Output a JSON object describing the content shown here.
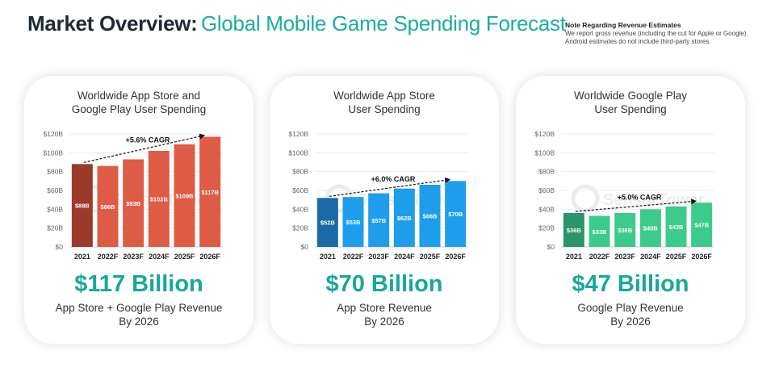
{
  "header": {
    "title_bold": "Market Overview:",
    "title_light": "Global Mobile Game Spending Forecast"
  },
  "note": {
    "title": "Note Regarding Revenue Estimates",
    "line1": "We report gross revenue (including the cut for Apple or Google).",
    "line2": "Android estimates do not include third-party stores."
  },
  "watermark": "SensorTower",
  "cards": [
    {
      "title_line1": "Worldwide App Store and",
      "title_line2": "Google Play User Spending",
      "big_value": "$117 Billion",
      "subtitle_line1": "App Store + Google Play Revenue",
      "subtitle_line2": "By 2026",
      "bar_color": "#de5b45",
      "first_bar_color": "#9b3a2b"
    },
    {
      "title_line1": "Worldwide App Store",
      "title_line2": "User Spending",
      "big_value": "$70 Billion",
      "subtitle_line1": "App Store Revenue",
      "subtitle_line2": "By 2026",
      "bar_color": "#1e9ded",
      "first_bar_color": "#1a6aa8"
    },
    {
      "title_line1": "Worldwide Google Play",
      "title_line2": "User Spending",
      "big_value": "$47 Billion",
      "subtitle_line1": "Google Play Revenue",
      "subtitle_line2": "By 2026",
      "bar_color": "#3ccb8b",
      "first_bar_color": "#2a9668"
    }
  ],
  "chart_data": [
    {
      "type": "bar",
      "title": "Worldwide App Store and Google Play User Spending",
      "categories": [
        "2021",
        "2022F",
        "2023F",
        "2024F",
        "2025F",
        "2026F"
      ],
      "values": [
        88,
        86,
        93,
        102,
        109,
        117
      ],
      "data_labels": [
        "$88B",
        "$86B",
        "$93B",
        "$102B",
        "$109B",
        "$117B"
      ],
      "yticks": [
        "$0",
        "$20B",
        "$40B",
        "$60B",
        "$80B",
        "$100B",
        "$120B"
      ],
      "ylim": [
        0,
        120
      ],
      "annotation": "+5.6% CAGR",
      "grid": true
    },
    {
      "type": "bar",
      "title": "Worldwide App Store User Spending",
      "categories": [
        "2021",
        "2022F",
        "2023F",
        "2024F",
        "2025F",
        "2026F"
      ],
      "values": [
        52,
        53,
        57,
        62,
        66,
        70
      ],
      "data_labels": [
        "$52B",
        "$53B",
        "$57B",
        "$62B",
        "$66B",
        "$70B"
      ],
      "yticks": [
        "$0",
        "$20B",
        "$40B",
        "$60B",
        "$80B",
        "$100B",
        "$120B"
      ],
      "ylim": [
        0,
        120
      ],
      "annotation": "+6.0% CAGR",
      "grid": true
    },
    {
      "type": "bar",
      "title": "Worldwide Google Play User Spending",
      "categories": [
        "2021",
        "2022F",
        "2023F",
        "2024F",
        "2025F",
        "2026F"
      ],
      "values": [
        36,
        33,
        36,
        40,
        43,
        47
      ],
      "data_labels": [
        "$36B",
        "$33B",
        "$36B",
        "$40B",
        "$43B",
        "$47B"
      ],
      "yticks": [
        "$0",
        "$20B",
        "$40B",
        "$60B",
        "$80B",
        "$100B",
        "$120B"
      ],
      "ylim": [
        0,
        120
      ],
      "annotation": "+5.0% CAGR",
      "grid": true
    }
  ]
}
